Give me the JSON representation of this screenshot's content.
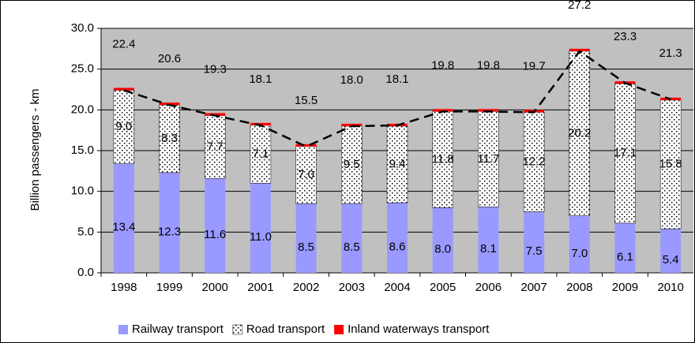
{
  "chart_data": {
    "type": "stacked-bar",
    "y_label": "Billion passengers - km",
    "categories": [
      "1998",
      "1999",
      "2000",
      "2001",
      "2002",
      "2003",
      "2004",
      "2005",
      "2006",
      "2007",
      "2008",
      "2009",
      "2010"
    ],
    "series": [
      {
        "name": "Railway transport",
        "color": "#9999ff",
        "fill": "solid",
        "values": [
          13.4,
          12.3,
          11.6,
          11.0,
          8.5,
          8.5,
          8.6,
          8.0,
          8.1,
          7.5,
          7.0,
          6.1,
          5.4
        ],
        "value_labels": [
          "13.4",
          "12.3",
          "11.6",
          "11.0",
          "8.5",
          "8.5",
          "8.6",
          "8.0",
          "8.1",
          "7.5",
          "7.0",
          "6.1",
          "5.4"
        ]
      },
      {
        "name": "Road transport",
        "color": "#ffffff",
        "fill": "dots",
        "values": [
          9.0,
          8.3,
          7.7,
          7.1,
          7.0,
          9.5,
          9.4,
          11.8,
          11.7,
          12.2,
          20.2,
          17.1,
          15.8
        ],
        "value_labels": [
          "9.0",
          "8.3",
          "7.7",
          "7.1",
          "7.0",
          "9.5",
          "9.4",
          "11.8",
          "11.7",
          "12.2",
          "20.2",
          "17.1",
          "15.8"
        ]
      },
      {
        "name": "Inland waterways  transport",
        "color": "#ff0000",
        "fill": "solid",
        "values": [
          0.3,
          0.3,
          0.3,
          0.3,
          0.3,
          0.3,
          0.3,
          0.3,
          0.3,
          0.3,
          0.3,
          0.3,
          0.3
        ]
      }
    ],
    "totals": {
      "color": "#000000",
      "line_style": "dashed",
      "values": [
        22.4,
        20.6,
        19.3,
        18.1,
        15.5,
        18.0,
        18.1,
        19.8,
        19.8,
        19.7,
        27.2,
        23.3,
        21.3
      ],
      "value_labels": [
        "22.4",
        "20.6",
        "19.3",
        "18.1",
        "15.5",
        "18.0",
        "18.1",
        "19.8",
        "19.8",
        "19.7",
        "27.2",
        "23.3",
        "21.3"
      ]
    },
    "ylim": [
      0,
      30
    ],
    "yticks": [
      {
        "value": 0,
        "label": "0.0"
      },
      {
        "value": 5,
        "label": "5.0"
      },
      {
        "value": 10,
        "label": "10.0"
      },
      {
        "value": 15,
        "label": "15.0"
      },
      {
        "value": 20,
        "label": "20.0"
      },
      {
        "value": 25,
        "label": "25.0"
      },
      {
        "value": 30,
        "label": "30.0"
      }
    ],
    "grid": true,
    "plot_background": "#c0c0c0",
    "legend": "bottom"
  }
}
